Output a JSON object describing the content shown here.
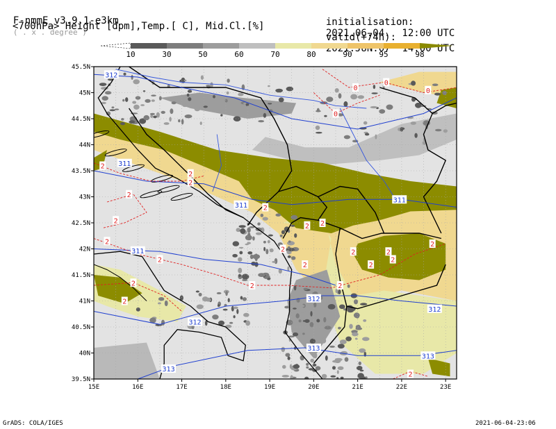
{
  "header": {
    "model": "F-nmmE_v3.9.1-e3km",
    "model_note": "( . x . degree )",
    "fields": "<700hPa> Height [dpm],Temp.[ C], Mid.Cl.[%]",
    "init_label": "initialisation:",
    "init_value": "2021.06.04.  12:00 UTC",
    "valid_label": "valid(+74h):",
    "valid_value": "2021.JUN.07  14:00 UTC"
  },
  "colorbar": {
    "ticks": [
      "10",
      "30",
      "50",
      "60",
      "70",
      "80",
      "90",
      "95",
      "98"
    ],
    "colors": [
      "#ffffff",
      "#5a5a5a",
      "#7d7d7d",
      "#9d9d9d",
      "#bfbfbf",
      "#e8e8a8",
      "#f0d890",
      "#eec46a",
      "#e8b030",
      "#8a8a00"
    ]
  },
  "map": {
    "lon_labels": [
      "15E",
      "16E",
      "17E",
      "18E",
      "19E",
      "20E",
      "21E",
      "22E",
      "23E"
    ],
    "lat_labels": [
      "45.5N",
      "45N",
      "44.5N",
      "44N",
      "43.5N",
      "43N",
      "42.5N",
      "42N",
      "41.5N",
      "41N",
      "40.5N",
      "40N",
      "39.5N"
    ],
    "lon_range": [
      15,
      23.25
    ],
    "lat_range": [
      39.5,
      45.5
    ],
    "background_color": "#e3e3e3",
    "cloud_color": "#8c8c00",
    "height_contour_color": "#2040d0",
    "temp_contour_color": "#e02020",
    "height_labels": [
      {
        "text": "312",
        "lon": 15.4,
        "lat": 45.35
      },
      {
        "text": "311",
        "lon": 15.7,
        "lat": 43.65
      },
      {
        "text": "311",
        "lon": 18.35,
        "lat": 42.85
      },
      {
        "text": "311",
        "lon": 16.0,
        "lat": 41.97
      },
      {
        "text": "311",
        "lon": 21.95,
        "lat": 42.95
      },
      {
        "text": "312",
        "lon": 17.3,
        "lat": 40.6
      },
      {
        "text": "312",
        "lon": 20.0,
        "lat": 41.05
      },
      {
        "text": "312",
        "lon": 22.75,
        "lat": 40.85
      },
      {
        "text": "313",
        "lon": 20.0,
        "lat": 40.1
      },
      {
        "text": "313",
        "lon": 22.6,
        "lat": 39.95
      },
      {
        "text": "313",
        "lon": 16.7,
        "lat": 39.7
      }
    ],
    "temp_labels": [
      {
        "text": "0",
        "lon": 20.95,
        "lat": 45.1
      },
      {
        "text": "0",
        "lon": 21.65,
        "lat": 45.2
      },
      {
        "text": "0",
        "lon": 22.6,
        "lat": 45.05
      },
      {
        "text": "0",
        "lon": 20.5,
        "lat": 44.6
      },
      {
        "text": "2",
        "lon": 15.2,
        "lat": 43.6
      },
      {
        "text": "2",
        "lon": 17.2,
        "lat": 43.45
      },
      {
        "text": "2",
        "lon": 17.2,
        "lat": 43.28
      },
      {
        "text": "2",
        "lon": 15.8,
        "lat": 43.05
      },
      {
        "text": "2",
        "lon": 15.5,
        "lat": 42.55
      },
      {
        "text": "2",
        "lon": 15.3,
        "lat": 42.15
      },
      {
        "text": "2",
        "lon": 16.5,
        "lat": 41.8
      },
      {
        "text": "2",
        "lon": 18.9,
        "lat": 42.8
      },
      {
        "text": "2",
        "lon": 19.85,
        "lat": 42.45
      },
      {
        "text": "2",
        "lon": 20.2,
        "lat": 42.5
      },
      {
        "text": "2",
        "lon": 19.3,
        "lat": 42.0
      },
      {
        "text": "2",
        "lon": 19.8,
        "lat": 41.7
      },
      {
        "text": "2",
        "lon": 20.6,
        "lat": 41.3
      },
      {
        "text": "2",
        "lon": 20.9,
        "lat": 41.95
      },
      {
        "text": "2",
        "lon": 21.7,
        "lat": 41.95
      },
      {
        "text": "2",
        "lon": 21.8,
        "lat": 41.8
      },
      {
        "text": "2",
        "lon": 22.7,
        "lat": 42.1
      },
      {
        "text": "2",
        "lon": 21.3,
        "lat": 41.7
      },
      {
        "text": "2",
        "lon": 18.6,
        "lat": 41.3
      },
      {
        "text": "2",
        "lon": 15.9,
        "lat": 41.35
      },
      {
        "text": "2",
        "lon": 15.7,
        "lat": 41.0
      },
      {
        "text": "2",
        "lon": 22.2,
        "lat": 39.6
      }
    ]
  },
  "footer": {
    "left": "GrADS: COLA/IGES",
    "right": "2021-06-04-23:06"
  }
}
